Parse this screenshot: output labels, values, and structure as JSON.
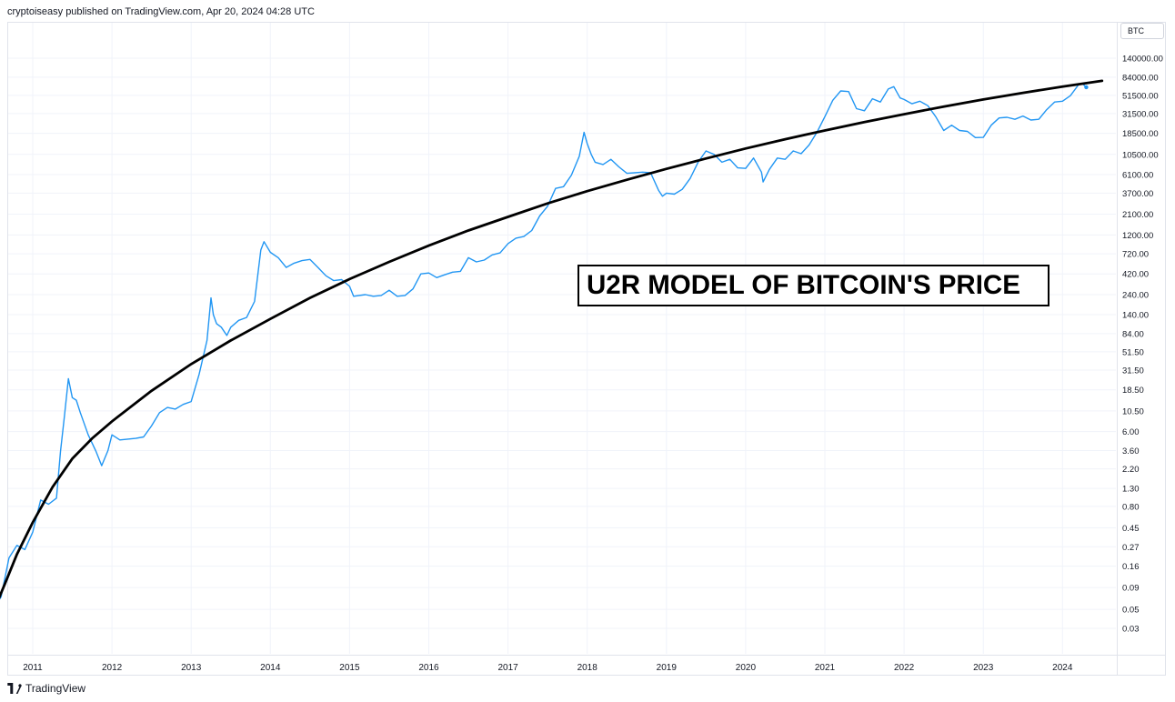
{
  "header": {
    "text": "cryptoiseasy published on TradingView.com, Apr 20, 2024 04:28 UTC"
  },
  "ticker": "BTC",
  "title_box": "U2R MODEL OF BITCOIN'S PRICE",
  "brand": {
    "name": "TradingView",
    "icon": "tradingview-logo-icon"
  },
  "colors": {
    "price_line": "#2196f3",
    "model_line": "#000000",
    "grid": "#f0f3fa"
  },
  "chart_data": {
    "type": "line",
    "title": "U2R MODEL OF BITCOIN'S PRICE",
    "y_scale": "log",
    "grid": true,
    "legend": "none",
    "ylim": [
      0.02,
      220000
    ],
    "y_ticks": [
      {
        "label": "140000.00",
        "value": 140000
      },
      {
        "label": "84000.00",
        "value": 84000
      },
      {
        "label": "51500.00",
        "value": 51500
      },
      {
        "label": "31500.00",
        "value": 31500
      },
      {
        "label": "18500.00",
        "value": 18500
      },
      {
        "label": "10500.00",
        "value": 10500
      },
      {
        "label": "6100.00",
        "value": 6100
      },
      {
        "label": "3700.00",
        "value": 3700
      },
      {
        "label": "2100.00",
        "value": 2100
      },
      {
        "label": "1200.00",
        "value": 1200
      },
      {
        "label": "720.00",
        "value": 720
      },
      {
        "label": "420.00",
        "value": 420
      },
      {
        "label": "240.00",
        "value": 240
      },
      {
        "label": "140.00",
        "value": 140
      },
      {
        "label": "84.00",
        "value": 84
      },
      {
        "label": "51.50",
        "value": 51.5
      },
      {
        "label": "31.50",
        "value": 31.5
      },
      {
        "label": "18.50",
        "value": 18.5
      },
      {
        "label": "10.50",
        "value": 10.5
      },
      {
        "label": "6.00",
        "value": 6
      },
      {
        "label": "3.60",
        "value": 3.6
      },
      {
        "label": "2.20",
        "value": 2.2
      },
      {
        "label": "1.30",
        "value": 1.3
      },
      {
        "label": "0.80",
        "value": 0.8
      },
      {
        "label": "0.45",
        "value": 0.45
      },
      {
        "label": "0.27",
        "value": 0.27
      },
      {
        "label": "0.16",
        "value": 0.16
      },
      {
        "label": "0.09",
        "value": 0.09
      },
      {
        "label": "0.05",
        "value": 0.05
      },
      {
        "label": "0.03",
        "value": 0.03
      }
    ],
    "x_ticks": [
      "2011",
      "2012",
      "2013",
      "2014",
      "2015",
      "2016",
      "2017",
      "2018",
      "2019",
      "2020",
      "2021",
      "2022",
      "2023",
      "2024"
    ],
    "series": [
      {
        "name": "",
        "style": "price",
        "x": [
          2010.55,
          2010.6,
          2010.7,
          2010.8,
          2010.9,
          2011.0,
          2011.1,
          2011.2,
          2011.3,
          2011.35,
          2011.4,
          2011.45,
          2011.5,
          2011.55,
          2011.6,
          2011.7,
          2011.8,
          2011.87,
          2011.95,
          2012.0,
          2012.1,
          2012.2,
          2012.3,
          2012.4,
          2012.5,
          2012.6,
          2012.7,
          2012.8,
          2012.9,
          2013.0,
          2013.1,
          2013.2,
          2013.25,
          2013.28,
          2013.32,
          2013.38,
          2013.45,
          2013.5,
          2013.6,
          2013.7,
          2013.8,
          2013.88,
          2013.92,
          2014.0,
          2014.1,
          2014.2,
          2014.3,
          2014.4,
          2014.5,
          2014.6,
          2014.7,
          2014.8,
          2014.9,
          2015.0,
          2015.05,
          2015.2,
          2015.3,
          2015.4,
          2015.5,
          2015.6,
          2015.7,
          2015.8,
          2015.9,
          2016.0,
          2016.1,
          2016.2,
          2016.3,
          2016.4,
          2016.5,
          2016.6,
          2016.7,
          2016.8,
          2016.9,
          2017.0,
          2017.1,
          2017.2,
          2017.3,
          2017.4,
          2017.5,
          2017.6,
          2017.7,
          2017.8,
          2017.9,
          2017.96,
          2018.0,
          2018.05,
          2018.1,
          2018.2,
          2018.3,
          2018.4,
          2018.5,
          2018.6,
          2018.7,
          2018.8,
          2018.9,
          2018.95,
          2019.0,
          2019.1,
          2019.2,
          2019.3,
          2019.4,
          2019.5,
          2019.6,
          2019.7,
          2019.8,
          2019.9,
          2020.0,
          2020.1,
          2020.2,
          2020.22,
          2020.3,
          2020.4,
          2020.5,
          2020.6,
          2020.7,
          2020.8,
          2020.9,
          2021.0,
          2021.1,
          2021.2,
          2021.3,
          2021.4,
          2021.5,
          2021.6,
          2021.7,
          2021.8,
          2021.87,
          2021.95,
          2022.0,
          2022.1,
          2022.2,
          2022.3,
          2022.4,
          2022.5,
          2022.6,
          2022.7,
          2022.8,
          2022.9,
          2023.0,
          2023.1,
          2023.2,
          2023.3,
          2023.4,
          2023.5,
          2023.6,
          2023.7,
          2023.8,
          2023.9,
          2024.0,
          2024.1,
          2024.2,
          2024.25,
          2024.3
        ],
        "y": [
          0.06,
          0.07,
          0.2,
          0.28,
          0.25,
          0.4,
          0.95,
          0.85,
          1.0,
          3.5,
          9.0,
          25.0,
          15.0,
          14.0,
          10.0,
          5.5,
          3.5,
          2.4,
          3.6,
          5.5,
          4.8,
          4.9,
          5.0,
          5.2,
          7.0,
          10.0,
          11.5,
          11.0,
          12.5,
          13.5,
          28.0,
          70.0,
          220.0,
          140.0,
          110.0,
          100.0,
          80.0,
          100.0,
          120.0,
          130.0,
          200.0,
          800.0,
          1000.0,
          750.0,
          650.0,
          500.0,
          560.0,
          600.0,
          620.0,
          500.0,
          400.0,
          350.0,
          360.0,
          300.0,
          230.0,
          240.0,
          230.0,
          235.0,
          270.0,
          230.0,
          235.0,
          280.0,
          420.0,
          430.0,
          380.0,
          410.0,
          440.0,
          450.0,
          650.0,
          580.0,
          610.0,
          700.0,
          740.0,
          950.0,
          1100.0,
          1150.0,
          1350.0,
          2000.0,
          2600.0,
          4200.0,
          4400.0,
          6000.0,
          10000.0,
          19000.0,
          14000.0,
          10500.0,
          8500.0,
          8000.0,
          9200.0,
          7500.0,
          6300.0,
          6400.0,
          6500.0,
          6400.0,
          4000.0,
          3400.0,
          3700.0,
          3600.0,
          4100.0,
          5500.0,
          8500.0,
          11500.0,
          10500.0,
          8500.0,
          9200.0,
          7300.0,
          7200.0,
          9500.0,
          6500.0,
          5000.0,
          7000.0,
          9500.0,
          9200.0,
          11500.0,
          10700.0,
          13500.0,
          19000.0,
          29000.0,
          45000.0,
          58000.0,
          57000.0,
          36000.0,
          34000.0,
          47000.0,
          43000.0,
          61000.0,
          65000.0,
          48000.0,
          46000.0,
          41000.0,
          44000.0,
          39000.0,
          29000.0,
          20000.0,
          23000.0,
          20000.0,
          19500.0,
          16500.0,
          16600.0,
          23000.0,
          28000.0,
          28500.0,
          27000.0,
          29500.0,
          26500.0,
          27000.0,
          35000.0,
          43000.0,
          44000.0,
          51000.0,
          68000.0,
          71000.0,
          64000.0
        ]
      },
      {
        "name": "",
        "style": "model",
        "x": [
          2010.55,
          2010.65,
          2010.8,
          2011.0,
          2011.25,
          2011.5,
          2011.75,
          2012.0,
          2012.5,
          2013.0,
          2013.5,
          2014.0,
          2014.5,
          2015.0,
          2015.5,
          2016.0,
          2016.5,
          2017.0,
          2017.5,
          2018.0,
          2018.5,
          2019.0,
          2019.5,
          2020.0,
          2020.5,
          2021.0,
          2021.5,
          2022.0,
          2022.5,
          2023.0,
          2023.5,
          2024.0,
          2024.5
        ],
        "y": [
          0.06,
          0.1,
          0.22,
          0.52,
          1.35,
          2.9,
          5.0,
          7.9,
          18.0,
          37.0,
          70.0,
          125.0,
          220.0,
          365.0,
          580.0,
          900.0,
          1350.0,
          1950.0,
          2800.0,
          3900.0,
          5300.0,
          7100.0,
          9400.0,
          12300.0,
          15800.0,
          20000.0,
          25000.0,
          31000.0,
          38000.0,
          46000.0,
          55000.0,
          65000.0,
          76000.0
        ]
      }
    ]
  }
}
